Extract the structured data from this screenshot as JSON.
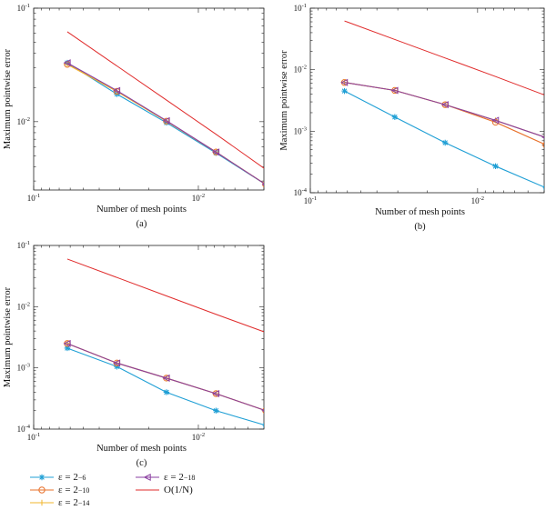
{
  "chart_data": [
    {
      "type": "line",
      "panel_label": "(a)",
      "xlabel": "Number of mesh points",
      "ylabel": "Maximum pointwise error",
      "xscale": "log",
      "yscale": "log",
      "xreverse": true,
      "xlim": [
        0.1,
        0.004
      ],
      "ylim": [
        0.0025,
        0.1
      ],
      "xticks": [
        {
          "v": 0.1,
          "b": "10",
          "e": "-1"
        },
        {
          "v": 0.01,
          "b": "10",
          "e": "-2"
        }
      ],
      "yticks": [
        {
          "v": 0.1,
          "b": "10",
          "e": "-1"
        },
        {
          "v": 0.01,
          "b": "10",
          "e": "-2"
        }
      ],
      "x": [
        0.0625,
        0.03125,
        0.015625,
        0.0078125,
        0.00390625
      ],
      "series": [
        {
          "name": "eps6",
          "values": [
            0.033,
            0.0175,
            0.0098,
            0.0053,
            0.0028
          ]
        },
        {
          "name": "eps10",
          "values": [
            0.032,
            0.0185,
            0.0101,
            0.0054,
            0.0028
          ]
        },
        {
          "name": "eps14",
          "values": [
            0.032,
            0.0185,
            0.0101,
            0.0054,
            0.0028
          ]
        },
        {
          "name": "eps18",
          "values": [
            0.033,
            0.0188,
            0.0102,
            0.0054,
            0.0028
          ]
        },
        {
          "name": "ref",
          "values": [
            0.062,
            0.031,
            0.0155,
            0.00775,
            0.0038
          ]
        }
      ]
    },
    {
      "type": "line",
      "panel_label": "(b)",
      "xlabel": "Number of mesh points",
      "ylabel": "Maximum pointwise error",
      "xscale": "log",
      "yscale": "log",
      "xreverse": true,
      "xlim": [
        0.1,
        0.004
      ],
      "ylim": [
        0.0001,
        0.1
      ],
      "xticks": [
        {
          "v": 0.1,
          "b": "10",
          "e": "-1"
        },
        {
          "v": 0.01,
          "b": "10",
          "e": "-2"
        }
      ],
      "yticks": [
        {
          "v": 0.1,
          "b": "10",
          "e": "-1"
        },
        {
          "v": 0.01,
          "b": "10",
          "e": "-2"
        },
        {
          "v": 0.001,
          "b": "10",
          "e": "-3"
        },
        {
          "v": 0.0001,
          "b": "10",
          "e": "-4"
        }
      ],
      "x": [
        0.0625,
        0.03125,
        0.015625,
        0.0078125,
        0.00390625
      ],
      "series": [
        {
          "name": "eps6",
          "values": [
            0.0045,
            0.0017,
            0.00065,
            0.00027,
            0.00012
          ]
        },
        {
          "name": "eps10",
          "values": [
            0.0062,
            0.0046,
            0.0027,
            0.0014,
            0.0006
          ]
        },
        {
          "name": "eps14",
          "values": [
            0.0062,
            0.0046,
            0.0027,
            0.0015,
            0.00079
          ]
        },
        {
          "name": "eps18",
          "values": [
            0.0062,
            0.0046,
            0.0027,
            0.0015,
            0.00079
          ]
        },
        {
          "name": "ref",
          "values": [
            0.062,
            0.031,
            0.0155,
            0.00775,
            0.0038
          ]
        }
      ]
    },
    {
      "type": "line",
      "panel_label": "(c)",
      "xlabel": "Number of mesh points",
      "ylabel": "Maximum pointwise error",
      "xscale": "log",
      "yscale": "log",
      "xreverse": true,
      "xlim": [
        0.1,
        0.004
      ],
      "ylim": [
        0.0001,
        0.1
      ],
      "xticks": [
        {
          "v": 0.1,
          "b": "10",
          "e": "-1"
        },
        {
          "v": 0.01,
          "b": "10",
          "e": "-2"
        }
      ],
      "yticks": [
        {
          "v": 0.1,
          "b": "10",
          "e": "-1"
        },
        {
          "v": 0.01,
          "b": "10",
          "e": "-2"
        },
        {
          "v": 0.001,
          "b": "10",
          "e": "-3"
        },
        {
          "v": 0.0001,
          "b": "10",
          "e": "-4"
        }
      ],
      "x": [
        0.0625,
        0.03125,
        0.015625,
        0.0078125,
        0.00390625
      ],
      "series": [
        {
          "name": "eps6",
          "values": [
            0.0021,
            0.00105,
            0.0004,
            0.0002,
            0.000115
          ]
        },
        {
          "name": "eps10",
          "values": [
            0.0025,
            0.0012,
            0.00068,
            0.00038,
            0.0002
          ]
        },
        {
          "name": "eps14",
          "values": [
            0.0025,
            0.0012,
            0.00068,
            0.00038,
            0.0002
          ]
        },
        {
          "name": "eps18",
          "values": [
            0.0025,
            0.0012,
            0.00068,
            0.00038,
            0.0002
          ]
        },
        {
          "name": "ref",
          "values": [
            0.06,
            0.03,
            0.015,
            0.0075,
            0.0038
          ]
        }
      ]
    }
  ],
  "styles": {
    "eps6": {
      "color": "#1f9fd5",
      "marker": "star"
    },
    "eps10": {
      "color": "#e8702a",
      "marker": "circle"
    },
    "eps14": {
      "color": "#f2b62c",
      "marker": "plus"
    },
    "eps18": {
      "color": "#8a3fa0",
      "marker": "triangle-left"
    },
    "ref": {
      "color": "#e02b2b",
      "marker": "none"
    }
  },
  "legend": {
    "placement": "bottom-left",
    "items": [
      {
        "key": "eps6",
        "label": "ε = 2",
        "exp": "−6"
      },
      {
        "key": "eps10",
        "label": "ε = 2",
        "exp": "−10"
      },
      {
        "key": "eps14",
        "label": "ε = 2",
        "exp": "−14"
      },
      {
        "key": "eps18",
        "label": "ε = 2",
        "exp": "−18"
      },
      {
        "key": "ref",
        "label": "O(1/N)",
        "exp": ""
      }
    ]
  }
}
